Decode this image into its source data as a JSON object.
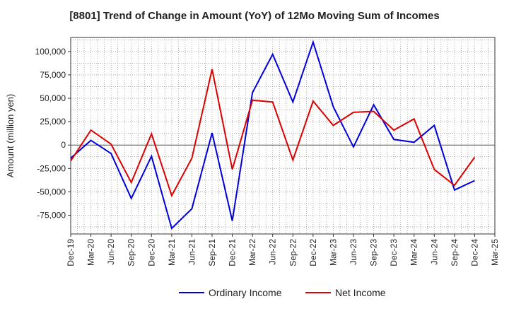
{
  "chart_data": {
    "type": "line",
    "title": "[8801]  Trend of Change in Amount (YoY) of 12Mo Moving Sum of Incomes",
    "xlabel": "",
    "ylabel": "Amount (million yen)",
    "ylim": [
      -95000,
      115000
    ],
    "yticks": [
      100000,
      75000,
      50000,
      25000,
      0,
      -25000,
      -50000,
      -75000
    ],
    "ytick_labels": [
      "100,000",
      "75,000",
      "50,000",
      "25,000",
      "0",
      "-25,000",
      "-50,000",
      "-75,000"
    ],
    "x": [
      "Dec-19",
      "Mar-20",
      "Jun-20",
      "Sep-20",
      "Dec-20",
      "Mar-21",
      "Jun-21",
      "Sep-21",
      "Dec-21",
      "Mar-22",
      "Jun-22",
      "Sep-22",
      "Dec-22",
      "Mar-23",
      "Jun-23",
      "Sep-23",
      "Dec-23",
      "Mar-24",
      "Jun-24",
      "Sep-24",
      "Dec-24",
      "Mar-25"
    ],
    "grid": true,
    "legend_position": "bottom",
    "series": [
      {
        "name": "Ordinary Income",
        "color": "#0000dd",
        "values": [
          -14000,
          5000,
          -9000,
          -57000,
          -12000,
          -89000,
          -68000,
          13000,
          -81000,
          56000,
          97000,
          46000,
          110000,
          41000,
          -2000,
          43000,
          6000,
          3000,
          21000,
          -48000,
          -38000,
          null
        ]
      },
      {
        "name": "Net Income",
        "color": "#dd0000",
        "values": [
          -17000,
          16000,
          1000,
          -40000,
          12000,
          -54000,
          -14000,
          81000,
          -26000,
          48000,
          46000,
          -16000,
          47000,
          21000,
          35000,
          36000,
          16000,
          28000,
          -26000,
          -43000,
          -13000,
          null
        ]
      }
    ]
  }
}
